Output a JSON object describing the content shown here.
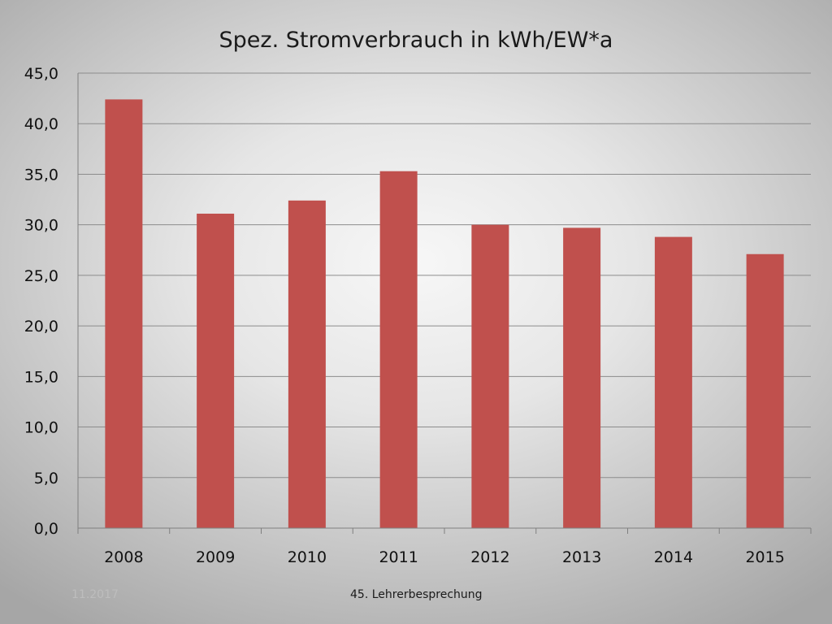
{
  "colors": {
    "bar": "#c0504d",
    "gridline": "#8c8c8c",
    "axis": "#7f7f7f"
  },
  "footer": {
    "date": "11.2017",
    "text": "45. Lehrerbesprechung"
  },
  "chart_data": {
    "type": "bar",
    "title": "Spez. Stromverbrauch in kWh/EW*a",
    "xlabel": "",
    "ylabel": "",
    "categories": [
      "2008",
      "2009",
      "2010",
      "2011",
      "2012",
      "2013",
      "2014",
      "2015"
    ],
    "values": [
      42.4,
      31.1,
      32.4,
      35.3,
      30.0,
      29.7,
      28.8,
      27.1
    ],
    "ylim": [
      0,
      45
    ],
    "yticks": [
      "0,0",
      "5,0",
      "10,0",
      "15,0",
      "20,0",
      "25,0",
      "30,0",
      "35,0",
      "40,0",
      "45,0"
    ],
    "grid": true,
    "legend": "none"
  }
}
